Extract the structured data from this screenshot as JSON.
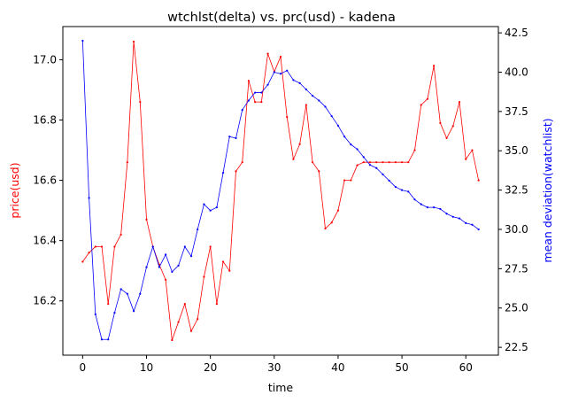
{
  "chart_data": {
    "type": "line",
    "title": "wtchlst(delta) vs. prc(usd) - kadena",
    "xlabel": "time",
    "ylabel_left": "price(usd)",
    "ylabel_right": "mean deviation(watchlist)",
    "xlim": [
      -3.1,
      65.1
    ],
    "ylim_left": [
      16.02,
      17.11
    ],
    "ylim_right": [
      22.0,
      42.9
    ],
    "x_ticks": [
      0,
      10,
      20,
      30,
      40,
      50,
      60
    ],
    "y_left_ticks": [
      16.2,
      16.4,
      16.6,
      16.8,
      17.0
    ],
    "y_left_tick_labels": [
      "16.2",
      "16.4",
      "16.6",
      "16.8",
      "17.0"
    ],
    "y_right_ticks": [
      22.5,
      25.0,
      27.5,
      30.0,
      32.5,
      35.0,
      37.5,
      40.0,
      42.5
    ],
    "y_right_tick_labels": [
      "22.5",
      "25.0",
      "27.5",
      "30.0",
      "32.5",
      "35.0",
      "37.5",
      "40.0",
      "42.5"
    ],
    "grid": false,
    "legend": "none",
    "colors": {
      "price": "#ff0000",
      "watchlist": "#0000ff"
    },
    "series": [
      {
        "axis": "left",
        "color": "#ff0000",
        "x": [
          0,
          1,
          2,
          3,
          4,
          5,
          6,
          7,
          8,
          9,
          10,
          11,
          12,
          13,
          14,
          15,
          16,
          17,
          18,
          19,
          20,
          21,
          22,
          23,
          24,
          25,
          26,
          27,
          28,
          29,
          30,
          31,
          32,
          33,
          34,
          35,
          36,
          37,
          38,
          39,
          40,
          41,
          42,
          43,
          44,
          45,
          46,
          47,
          48,
          49,
          50,
          51,
          52,
          53,
          54,
          55,
          56,
          57,
          58,
          59,
          60,
          61,
          62
        ],
        "values": [
          16.33,
          16.36,
          16.38,
          16.38,
          16.19,
          16.38,
          16.42,
          16.66,
          17.06,
          16.86,
          16.47,
          16.38,
          16.32,
          16.27,
          16.07,
          16.13,
          16.19,
          16.1,
          16.14,
          16.28,
          16.38,
          16.19,
          16.33,
          16.3,
          16.63,
          16.66,
          16.93,
          16.86,
          16.86,
          17.02,
          16.96,
          17.01,
          16.81,
          16.67,
          16.72,
          16.85,
          16.66,
          16.63,
          16.44,
          16.46,
          16.5,
          16.6,
          16.6,
          16.65,
          16.66,
          16.66,
          16.66,
          16.66,
          16.66,
          16.66,
          16.66,
          16.66,
          16.7,
          16.85,
          16.87,
          16.98,
          16.79,
          16.74,
          16.78,
          16.86,
          16.67,
          16.7,
          16.6
        ]
      },
      {
        "axis": "right",
        "color": "#0000ff",
        "x": [
          0,
          1,
          2,
          3,
          4,
          5,
          6,
          7,
          8,
          9,
          10,
          11,
          12,
          13,
          14,
          15,
          16,
          17,
          18,
          19,
          20,
          21,
          22,
          23,
          24,
          25,
          26,
          27,
          28,
          29,
          30,
          31,
          32,
          33,
          34,
          35,
          36,
          37,
          38,
          39,
          40,
          41,
          42,
          43,
          44,
          45,
          46,
          47,
          48,
          49,
          50,
          51,
          52,
          53,
          54,
          55,
          56,
          57,
          58,
          59,
          60,
          61,
          62
        ],
        "values": [
          42.0,
          32.0,
          24.6,
          23.0,
          23.0,
          24.7,
          26.2,
          25.9,
          24.8,
          25.9,
          27.6,
          28.9,
          27.6,
          28.4,
          27.3,
          27.7,
          28.9,
          28.3,
          30.0,
          31.6,
          31.2,
          31.4,
          33.6,
          35.9,
          35.8,
          37.6,
          38.2,
          38.7,
          38.7,
          39.2,
          40.0,
          39.9,
          40.1,
          39.5,
          39.3,
          38.9,
          38.5,
          38.2,
          37.8,
          37.2,
          36.6,
          35.9,
          35.4,
          35.1,
          34.6,
          34.1,
          33.9,
          33.5,
          33.1,
          32.7,
          32.5,
          32.4,
          31.9,
          31.6,
          31.4,
          31.4,
          31.3,
          31.0,
          30.8,
          30.7,
          30.4,
          30.3,
          30.0
        ]
      }
    ]
  }
}
